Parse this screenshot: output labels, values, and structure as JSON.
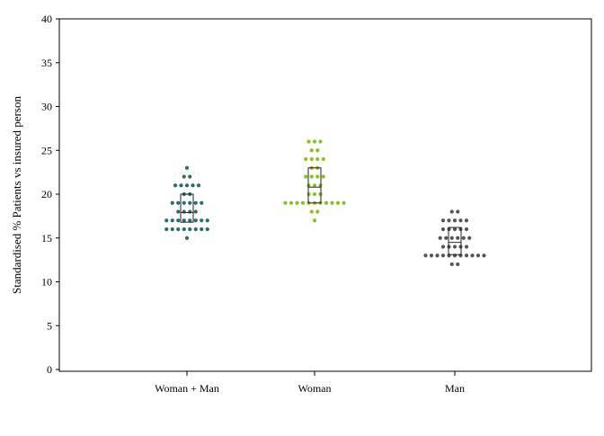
{
  "chart_data": {
    "type": "scatter",
    "subtype": "dot-plot-with-box",
    "title": "",
    "xlabel": "",
    "ylabel": "Standardised % Patients vs insured person",
    "ylim": [
      0,
      40
    ],
    "yticks": [
      0,
      5,
      10,
      15,
      20,
      25,
      30,
      35,
      40
    ],
    "grid": false,
    "categories": [
      "Woman + Man",
      "Woman",
      "Man"
    ],
    "series": [
      {
        "category": "Woman + Man",
        "color": "#2a6b6b",
        "dots": [
          {
            "value": 15,
            "count": 1
          },
          {
            "value": 16,
            "count": 8
          },
          {
            "value": 17,
            "count": 8
          },
          {
            "value": 18,
            "count": 4
          },
          {
            "value": 19,
            "count": 6
          },
          {
            "value": 20,
            "count": 2
          },
          {
            "value": 21,
            "count": 5
          },
          {
            "value": 22,
            "count": 2
          },
          {
            "value": 23,
            "count": 1
          }
        ],
        "box": {
          "q1": 16.8,
          "median": 17.9,
          "q3": 20.0
        }
      },
      {
        "category": "Woman",
        "color": "#8bc01e",
        "dots": [
          {
            "value": 17,
            "count": 1
          },
          {
            "value": 18,
            "count": 2
          },
          {
            "value": 19,
            "count": 11
          },
          {
            "value": 20,
            "count": 3
          },
          {
            "value": 21,
            "count": 3
          },
          {
            "value": 22,
            "count": 4
          },
          {
            "value": 23,
            "count": 2
          },
          {
            "value": 24,
            "count": 4
          },
          {
            "value": 25,
            "count": 2
          },
          {
            "value": 26,
            "count": 3
          }
        ],
        "box": {
          "q1": 19.0,
          "median": 20.8,
          "q3": 23.0
        }
      },
      {
        "category": "Man",
        "color": "#555555",
        "dots": [
          {
            "value": 12,
            "count": 2
          },
          {
            "value": 13,
            "count": 11
          },
          {
            "value": 14,
            "count": 5
          },
          {
            "value": 15,
            "count": 6
          },
          {
            "value": 16,
            "count": 5
          },
          {
            "value": 17,
            "count": 5
          },
          {
            "value": 18,
            "count": 2
          }
        ],
        "box": {
          "q1": 13.1,
          "median": 14.5,
          "q3": 16.2
        }
      }
    ]
  }
}
